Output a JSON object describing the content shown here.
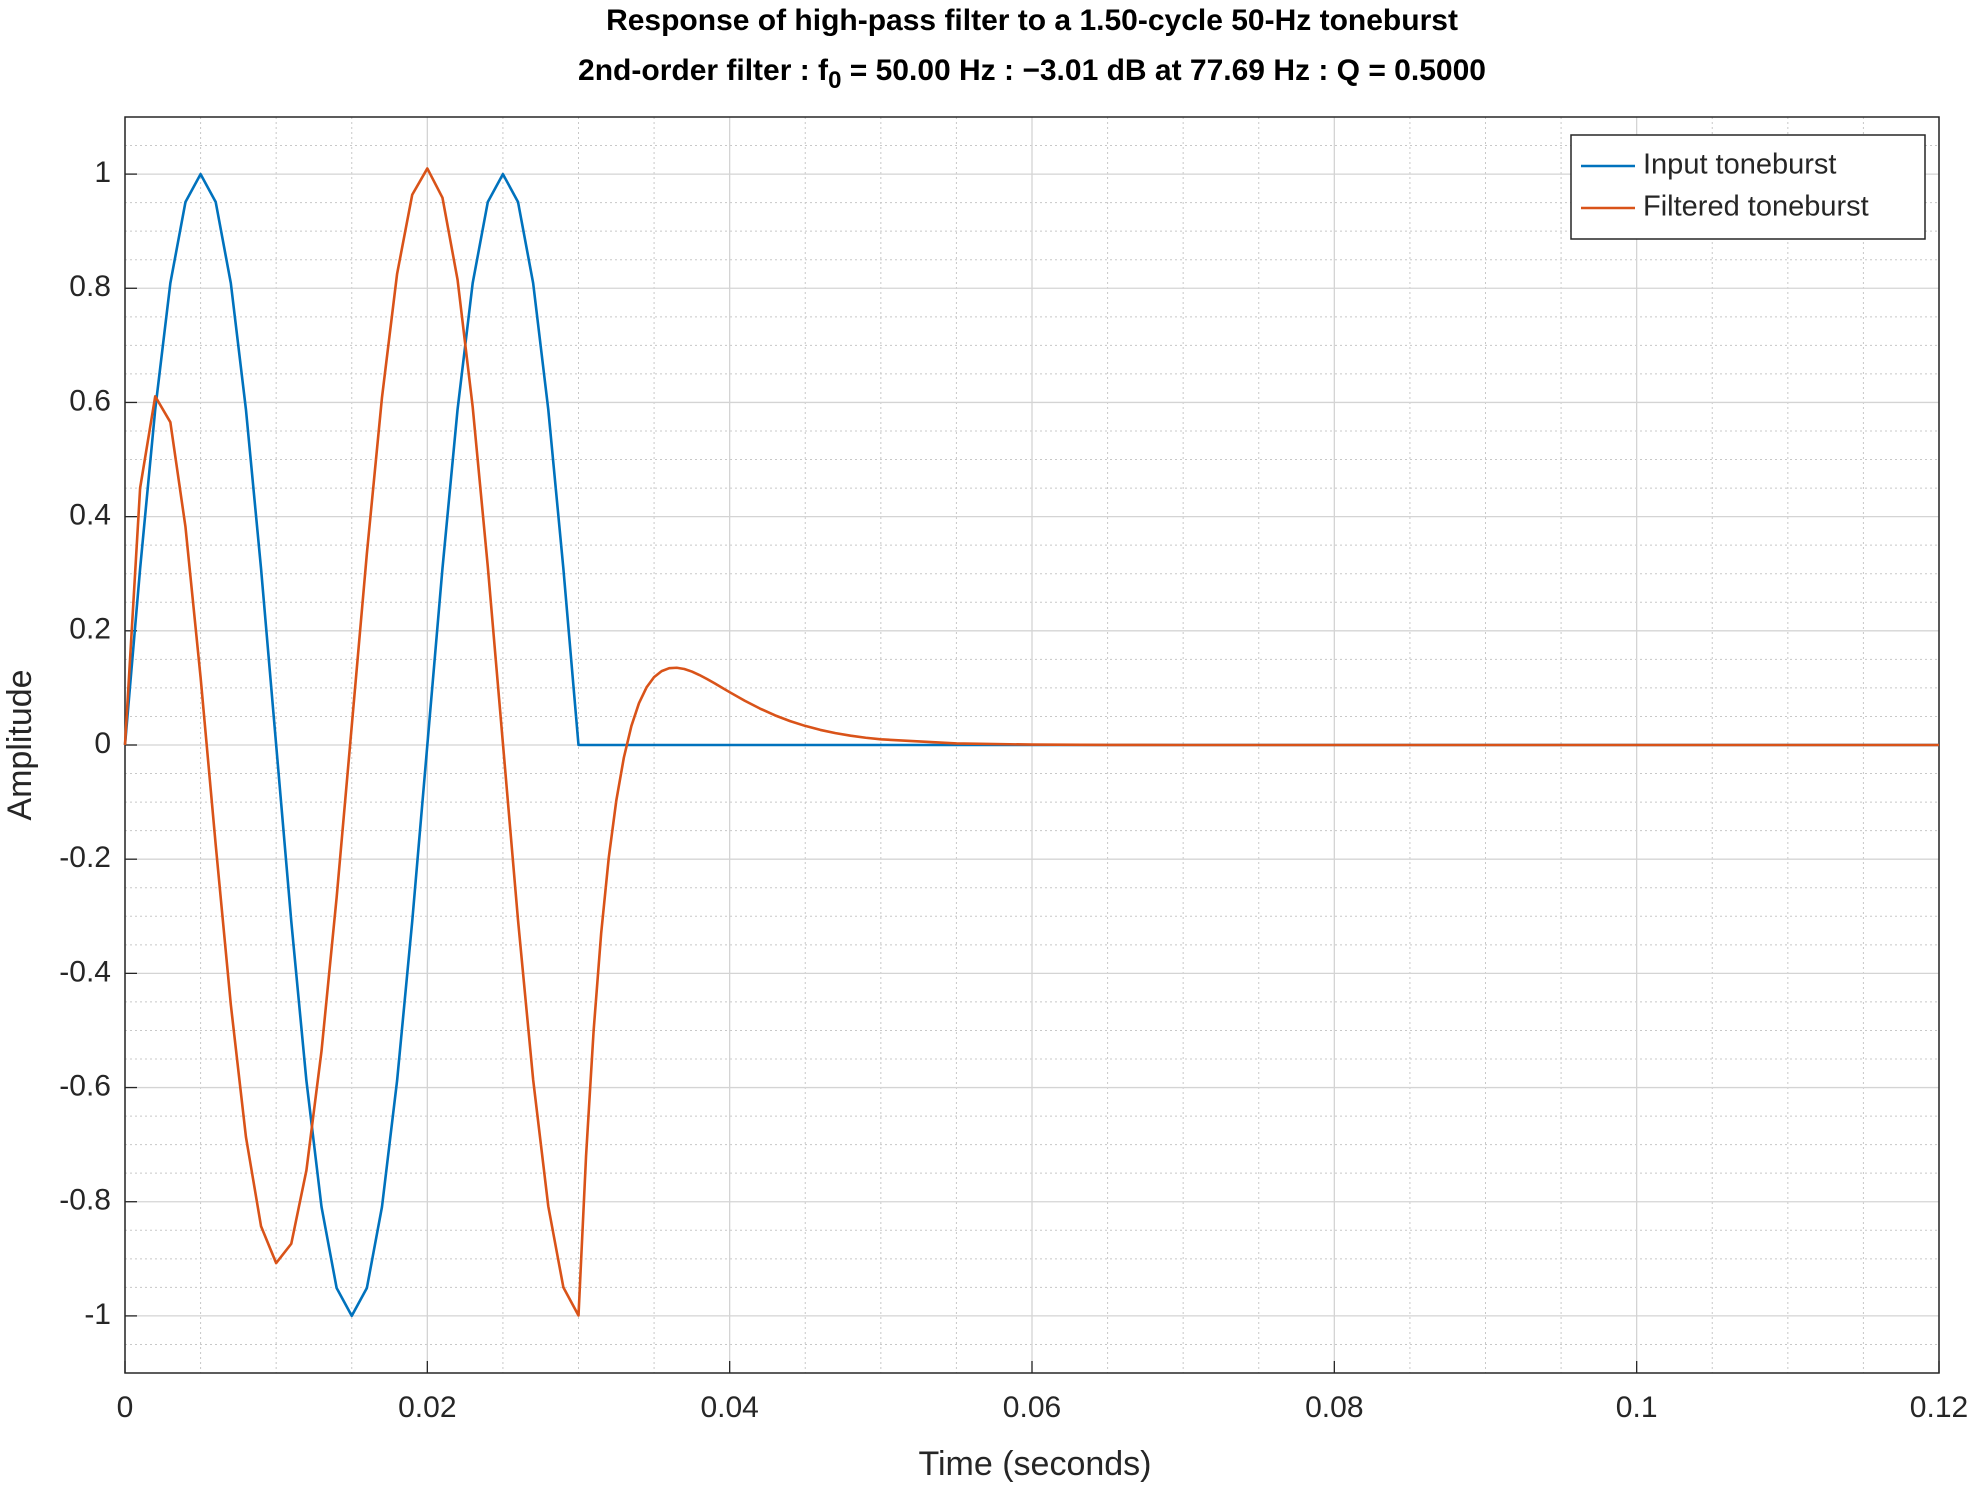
{
  "chart_data": {
    "type": "line",
    "title": "Response of high-pass filter to a 1.50-cycle 50-Hz toneburst",
    "subtitle": [
      "2nd-order filter : f",
      "0",
      " = 50.00 Hz : −3.01 dB at 77.69 Hz : Q = 0.5000"
    ],
    "x_label": "Time (seconds)",
    "y_label": "Amplitude",
    "x": [
      0,
      0.001,
      0.002,
      0.003,
      0.004,
      0.005,
      0.006,
      0.007,
      0.008,
      0.009,
      0.01,
      0.011,
      0.012,
      0.013,
      0.014,
      0.015,
      0.016,
      0.017,
      0.018,
      0.019,
      0.02,
      0.021,
      0.022,
      0.023,
      0.024,
      0.025,
      0.026,
      0.027,
      0.028,
      0.029,
      0.03,
      0.0305,
      0.031,
      0.0315,
      0.032,
      0.0325,
      0.033,
      0.0335,
      0.034,
      0.0345,
      0.035,
      0.0355,
      0.036,
      0.0365,
      0.037,
      0.0375,
      0.038,
      0.0385,
      0.039,
      0.0395,
      0.04,
      0.041,
      0.042,
      0.043,
      0.044,
      0.045,
      0.046,
      0.047,
      0.048,
      0.049,
      0.05,
      0.055,
      0.06,
      0.065,
      0.07,
      0.075,
      0.08,
      0.085,
      0.09,
      0.095,
      0.1,
      0.105,
      0.11,
      0.115,
      0.12
    ],
    "series": [
      {
        "name": "Input toneburst",
        "color": "#0072BD",
        "values": [
          0,
          0.309,
          0.5878,
          0.809,
          0.9511,
          1,
          0.9511,
          0.809,
          0.5878,
          0.309,
          0,
          -0.309,
          -0.5878,
          -0.809,
          -0.9511,
          -1,
          -0.9511,
          -0.809,
          -0.5878,
          -0.309,
          0,
          0.309,
          0.5878,
          0.809,
          0.9511,
          1,
          0.9511,
          0.809,
          0.5878,
          0.309,
          0,
          0,
          0,
          0,
          0,
          0,
          0,
          0,
          0,
          0,
          0,
          0,
          0,
          0,
          0,
          0,
          0,
          0,
          0,
          0,
          0,
          0,
          0,
          0,
          0,
          0,
          0,
          0,
          0,
          0,
          0,
          0,
          0,
          0,
          0,
          0,
          0,
          0,
          0,
          0,
          0,
          0,
          0,
          0,
          0
        ]
      },
      {
        "name": "Filtered toneburst",
        "color": "#D95319",
        "values": [
          0,
          0.4502,
          0.6107,
          0.5654,
          0.3821,
          0.1187,
          -0.1747,
          -0.4548,
          -0.6864,
          -0.843,
          -0.9075,
          -0.8736,
          -0.7452,
          -0.5359,
          -0.2672,
          0.0333,
          0.3354,
          0.6086,
          0.8253,
          0.9638,
          1.0099,
          0.9587,
          0.8149,
          0.5923,
          0.3125,
          0.0027,
          -0.307,
          -0.5862,
          -0.8078,
          -0.9501,
          -0.9993,
          -0.7198,
          -0.5004,
          -0.3297,
          -0.1979,
          -0.0975,
          -0.0221,
          0.0334,
          0.0732,
          0.1009,
          0.1189,
          0.1294,
          0.1345,
          0.1353,
          0.1331,
          0.1286,
          0.1226,
          0.1156,
          0.1081,
          0.1003,
          0.0925,
          0.0775,
          0.0639,
          0.0519,
          0.0418,
          0.0334,
          0.0264,
          0.0208,
          0.0163,
          0.0127,
          0.0099,
          0.0027,
          0.0007,
          0.0002,
          0,
          0,
          0,
          0,
          0,
          0,
          0,
          0,
          0,
          0,
          0
        ]
      }
    ],
    "xlim": [
      0,
      0.12
    ],
    "xticks": [
      0,
      0.02,
      0.04,
      0.06,
      0.08,
      0.1,
      0.12
    ],
    "ylim": [
      -1.1,
      1.1
    ],
    "yticks": [
      -1,
      -0.8,
      -0.6,
      -0.4,
      -0.2,
      0,
      0.2,
      0.4,
      0.6,
      0.8,
      1
    ],
    "grid": true,
    "minor_grid": true,
    "minor_divisions": 4,
    "legend": "upper right"
  }
}
